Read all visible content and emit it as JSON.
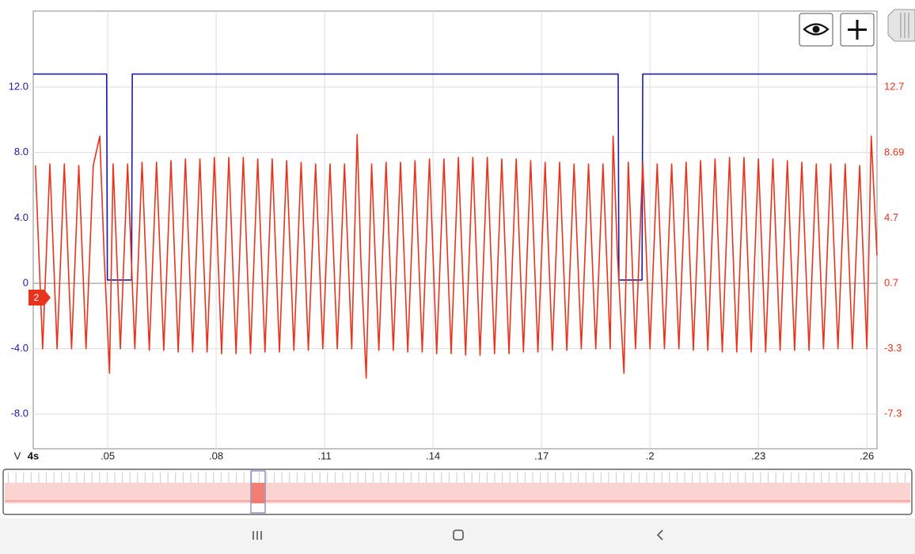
{
  "chart_data": {
    "type": "line",
    "x_label": "4s",
    "y_label": "V",
    "channel_marker": "2",
    "xlim": [
      0.0294,
      0.2628
    ],
    "xticks": [
      {
        "value": 0.05,
        "label": ".05"
      },
      {
        "value": 0.08,
        "label": ".08"
      },
      {
        "value": 0.11,
        "label": ".11"
      },
      {
        "value": 0.14,
        "label": ".14"
      },
      {
        "value": 0.17,
        "label": ".17"
      },
      {
        "value": 0.2,
        "label": ".2"
      },
      {
        "value": 0.23,
        "label": ".23"
      },
      {
        "value": 0.26,
        "label": ".26"
      }
    ],
    "ylim": [
      -10.12,
      16.65
    ],
    "yticks": [
      {
        "value": -8,
        "label": "-8.0"
      },
      {
        "value": -4,
        "label": "-4.0"
      },
      0,
      {
        "value": 4,
        "label": "4.0"
      },
      {
        "value": 8,
        "label": "8.0"
      },
      {
        "value": 12,
        "label": "12.0"
      }
    ],
    "y2lim": [
      -9.42,
      17.35
    ],
    "y2ticks": [
      -7.3,
      -3.3,
      0.7,
      4.7,
      8.69,
      12.7
    ],
    "grid": true,
    "series": [
      {
        "color": "#1c1ca8",
        "axis": "y",
        "x": [
          0.0294,
          0.0497,
          0.0499,
          0.0566,
          0.0568,
          0.1912,
          0.1914,
          0.1978,
          0.198,
          0.2628
        ],
        "values": [
          12.8,
          12.8,
          0.2,
          0.2,
          12.8,
          12.8,
          0.2,
          0.2,
          12.8,
          12.8
        ]
      },
      {
        "color": "#e8341c",
        "axis": "y2",
        "x": [
          0.03,
          0.032,
          0.034,
          0.036,
          0.038,
          0.04,
          0.042,
          0.044,
          0.046,
          0.0478,
          0.049,
          0.0505,
          0.0515,
          0.0535,
          0.0555,
          0.0575,
          0.0595,
          0.0615,
          0.0635,
          0.0655,
          0.0675,
          0.0695,
          0.0715,
          0.0735,
          0.0755,
          0.0775,
          0.0795,
          0.0815,
          0.0835,
          0.0855,
          0.0875,
          0.0895,
          0.0915,
          0.0935,
          0.0955,
          0.0975,
          0.0995,
          0.1015,
          0.1035,
          0.1055,
          0.1075,
          0.1095,
          0.1115,
          0.1135,
          0.1155,
          0.1175,
          0.119,
          0.12,
          0.1215,
          0.123,
          0.125,
          0.127,
          0.129,
          0.131,
          0.133,
          0.135,
          0.137,
          0.139,
          0.141,
          0.143,
          0.145,
          0.147,
          0.149,
          0.151,
          0.153,
          0.155,
          0.157,
          0.159,
          0.161,
          0.163,
          0.165,
          0.167,
          0.169,
          0.171,
          0.173,
          0.175,
          0.177,
          0.179,
          0.181,
          0.183,
          0.185,
          0.187,
          0.189,
          0.1898,
          0.191,
          0.1928,
          0.194,
          0.196,
          0.198,
          0.2,
          0.202,
          0.204,
          0.206,
          0.208,
          0.21,
          0.212,
          0.214,
          0.216,
          0.218,
          0.22,
          0.222,
          0.224,
          0.226,
          0.228,
          0.23,
          0.232,
          0.234,
          0.236,
          0.238,
          0.24,
          0.242,
          0.244,
          0.246,
          0.248,
          0.25,
          0.252,
          0.254,
          0.256,
          0.258,
          0.26,
          0.2612,
          0.2628
        ],
        "values": [
          7.9,
          -3.3,
          8.0,
          -3.3,
          8.0,
          -3.3,
          7.9,
          -3.3,
          7.9,
          9.7,
          2.5,
          -4.8,
          8.0,
          -3.3,
          8.0,
          -3.3,
          8.1,
          -3.4,
          8.1,
          -3.4,
          8.2,
          -3.5,
          8.3,
          -3.5,
          8.3,
          -3.5,
          8.4,
          -3.6,
          8.4,
          -3.6,
          8.4,
          -3.6,
          8.3,
          -3.5,
          8.3,
          -3.5,
          8.2,
          -3.4,
          8.1,
          -3.4,
          8.0,
          -3.3,
          8.0,
          -3.3,
          8.0,
          -3.3,
          9.8,
          2.3,
          -5.1,
          8.0,
          -3.4,
          8.1,
          -3.4,
          8.1,
          -3.5,
          8.2,
          -3.5,
          8.3,
          -3.6,
          8.3,
          -3.6,
          8.4,
          -3.7,
          8.4,
          -3.7,
          8.4,
          -3.6,
          8.3,
          -3.6,
          8.3,
          -3.5,
          8.2,
          -3.5,
          8.1,
          -3.4,
          8.1,
          -3.4,
          8.0,
          -3.3,
          8.0,
          -3.3,
          8.0,
          -3.3,
          9.7,
          2.4,
          -4.8,
          8.1,
          -3.3,
          8.1,
          -3.3,
          8.0,
          -3.3,
          8.0,
          -3.3,
          8.1,
          -3.4,
          8.2,
          -3.4,
          8.3,
          -3.5,
          8.4,
          -3.5,
          8.4,
          -3.5,
          8.3,
          -3.5,
          8.3,
          -3.4,
          8.2,
          -3.4,
          8.1,
          -3.4,
          8.0,
          -3.3,
          8.0,
          -3.3,
          8.0,
          -3.3,
          7.9,
          -3.3,
          9.7,
          2.4
        ]
      }
    ]
  }
}
